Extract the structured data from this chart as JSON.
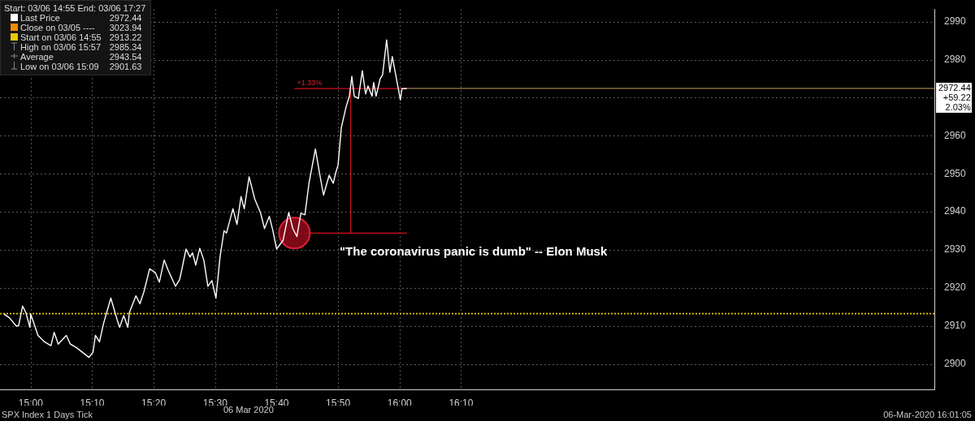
{
  "chart_data": {
    "type": "line",
    "xlabel": "06 Mar 2020",
    "legend_title": "Start: 03/06 14:55 End: 03/06 17:27",
    "legend": "top left",
    "grid": true,
    "marker": "none",
    "line_style": "solid",
    "xlim": [
      14.9167,
      17.45
    ],
    "xticks": [
      {
        "value": 15.0,
        "label": "15:00"
      },
      {
        "value": 15.1667,
        "label": "15:10"
      },
      {
        "value": 15.3333,
        "label": "15:20"
      },
      {
        "value": 15.5,
        "label": "15:30"
      },
      {
        "value": 15.6667,
        "label": "15:40"
      },
      {
        "value": 15.8333,
        "label": "15:50"
      },
      {
        "value": 16.0,
        "label": "16:00"
      },
      {
        "value": 16.1667,
        "label": "16:10"
      }
    ],
    "ylim": [
      2893.3,
      2993.3
    ],
    "yticks": [
      2900,
      2910,
      2920,
      2930,
      2940,
      2950,
      2960,
      {
        "value": 2970,
        "label": null
      },
      2980,
      2990
    ],
    "x": [
      14.9276,
      14.9423,
      14.9605,
      14.9671,
      14.978,
      14.9868,
      14.9978,
      15.0,
      15.0197,
      15.0373,
      15.0548,
      15.0636,
      15.0746,
      15.0965,
      15.1075,
      15.125,
      15.1579,
      15.1689,
      15.1754,
      15.1864,
      15.1974,
      15.2171,
      15.2346,
      15.2412,
      15.2522,
      15.2632,
      15.2675,
      15.2851,
      15.296,
      15.307,
      15.3224,
      15.3377,
      15.3487,
      15.3618,
      15.3728,
      15.3925,
      15.4035,
      15.4101,
      15.4211,
      15.432,
      15.4386,
      15.4474,
      15.4583,
      15.4693,
      15.4803,
      15.4912,
      15.5022,
      15.5132,
      15.5241,
      15.5307,
      15.5482,
      15.5592,
      15.5702,
      15.5789,
      15.5921,
      15.6075,
      15.6228,
      15.6338,
      15.6469,
      15.6557,
      15.6667,
      15.6842,
      15.6996,
      15.7105,
      15.7215,
      15.7325,
      15.7434,
      15.7544,
      15.7719,
      15.7829,
      15.7939,
      15.8092,
      15.8202,
      15.8268,
      15.8333,
      15.8421,
      15.8553,
      15.864,
      15.8706,
      15.8772,
      15.8882,
      15.8991,
      15.9079,
      15.9145,
      15.9254,
      15.9298,
      15.9364,
      15.9474,
      15.954,
      15.9649,
      15.9737,
      15.9803,
      15.9912,
      16.0022,
      16.0066,
      16.0197
    ],
    "series": [
      {
        "name": "Last Price",
        "color": "#ffffff",
        "values": [
          2913.1,
          2912.1,
          2910.0,
          2910.0,
          2915.2,
          2913.5,
          2909.6,
          2913.1,
          2907.5,
          2905.8,
          2904.8,
          2908.3,
          2905.2,
          2907.5,
          2905.2,
          2904.2,
          2901.7,
          2903.1,
          2907.5,
          2905.8,
          2910.6,
          2917.3,
          2911.5,
          2909.6,
          2912.7,
          2909.6,
          2913.5,
          2917.9,
          2915.8,
          2919.0,
          2925.0,
          2924.0,
          2921.5,
          2927.3,
          2924.6,
          2920.4,
          2922.1,
          2925.0,
          2930.2,
          2928.1,
          2929.2,
          2926.0,
          2930.4,
          2927.3,
          2920.4,
          2921.9,
          2917.3,
          2928.1,
          2935.0,
          2934.4,
          2940.8,
          2936.7,
          2944.0,
          2940.8,
          2949.2,
          2943.3,
          2939.8,
          2935.6,
          2938.8,
          2935.4,
          2930.2,
          2932.5,
          2939.8,
          2935.6,
          2933.5,
          2939.6,
          2939.2,
          2947.5,
          2956.5,
          2950.2,
          2944.4,
          2949.6,
          2947.5,
          2950.2,
          2952.3,
          2962.1,
          2967.7,
          2970.4,
          2975.6,
          2970.4,
          2969.8,
          2977.1,
          2971.0,
          2973.1,
          2970.4,
          2974.0,
          2970.4,
          2975.0,
          2976.0,
          2985.2,
          2976.7,
          2980.8,
          2975.2,
          2969.4,
          2972.4,
          2972.4
        ]
      }
    ],
    "ref_lines": [
      {
        "axis": "y",
        "value": 2913.22,
        "color": "#e8c800",
        "line_style": "dotted"
      },
      {
        "axis": "y",
        "value": 2972.44,
        "label": "2972.44",
        "color": "#c8a060",
        "line_style": "solid"
      }
    ],
    "annotations": [
      "+1.33%",
      {
        "text": "\"The coronavirus panic is dumb\" -- Elon Musk",
        "x": 15.715,
        "y": 2934.4
      },
      "+59.22",
      "2.03%",
      "SPX Index 1 Days Tick",
      "06-Mar-2020 16:01:05",
      "Close on 03/05 ---- 3023.94",
      "2972.44",
      "Start on 03/06 14:55 2913.22",
      "High on 03/06 15:57 2985.34",
      "Average 2943.54",
      "Low on 03/06 15:09 2901.63"
    ]
  }
}
